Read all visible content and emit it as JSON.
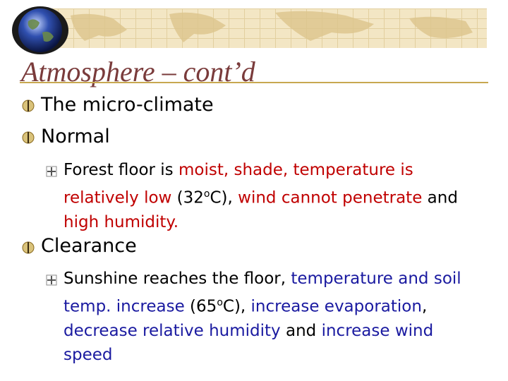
{
  "slide": {
    "title": "Atmosphere – cont’d",
    "accent_color": "#c8a850",
    "title_color": "#7a3b3b",
    "bullets": [
      {
        "text": "The micro-climate"
      },
      {
        "text": "Normal"
      },
      {
        "text": "Clearance"
      }
    ],
    "normal_detail": {
      "p1": "Forest floor is ",
      "p2": "moist, shade, temperature is relatively low",
      "p3": " (32",
      "deg": "o",
      "p4": "C), ",
      "p5": "wind cannot penetrate",
      "p6": " and ",
      "p7": "high humidity."
    },
    "clearance_detail": {
      "p1": "Sunshine reaches the floor, ",
      "p2": "temperature and soil temp. increase",
      "p3": " (65",
      "deg": "o",
      "p4": "C), ",
      "p5": "increase evaporation",
      "p6": ", ",
      "p7": "decrease relative humidity",
      "p8": " and ",
      "p9": "increase wind speed"
    },
    "highlight_red": "#c00000",
    "highlight_blue": "#1a1aa0"
  }
}
